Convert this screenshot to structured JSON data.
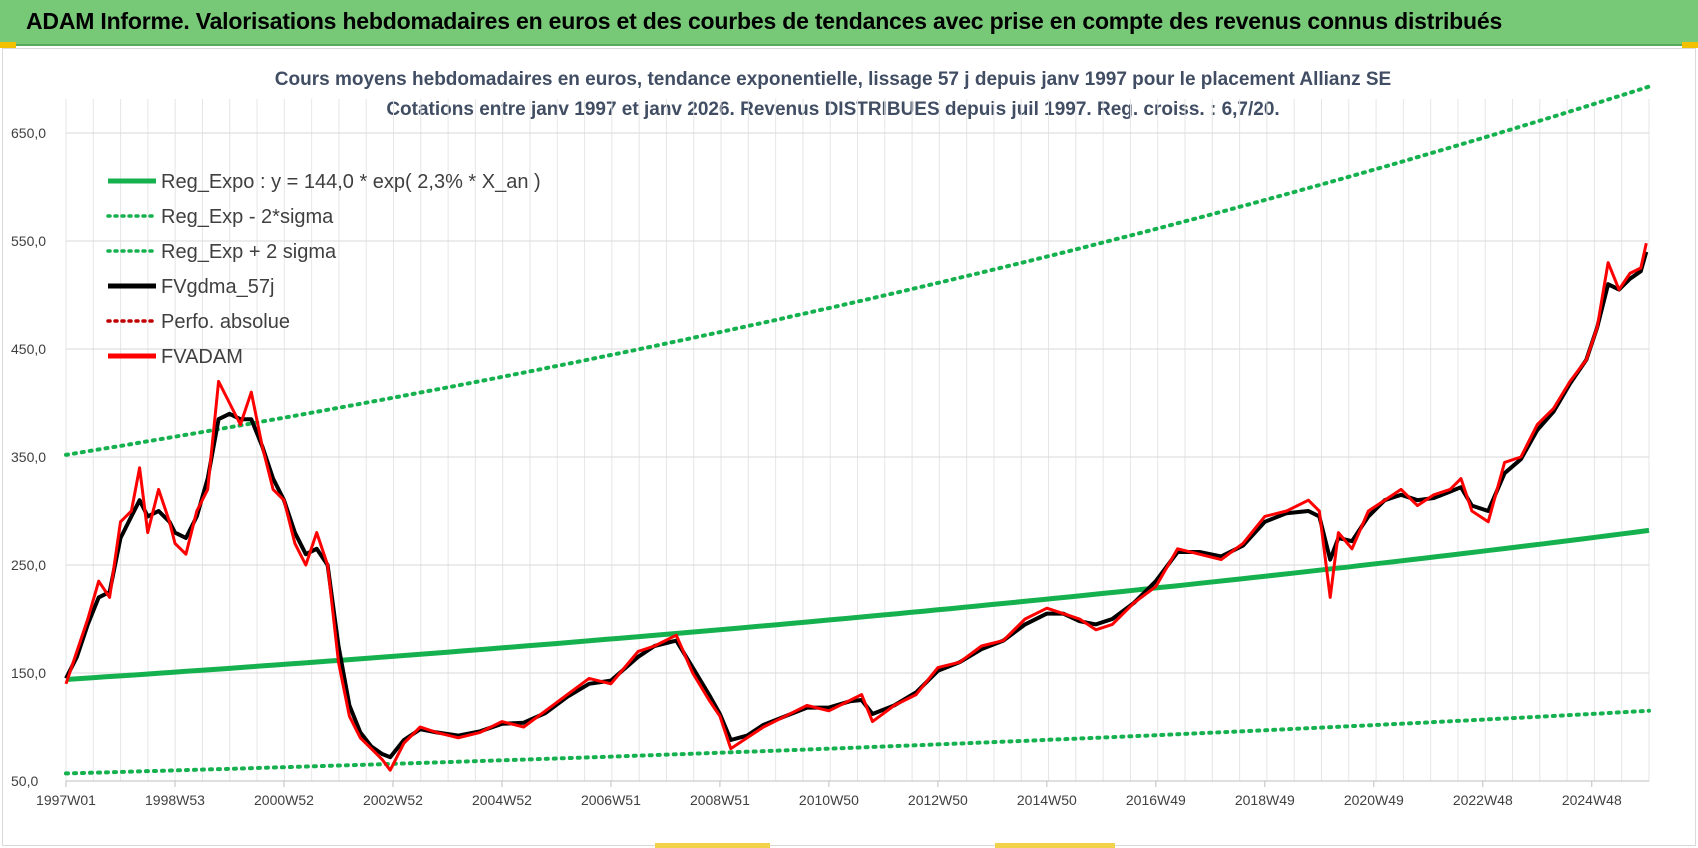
{
  "header": {
    "title": "ADAM Informe. Valorisations hebdomadaires en euros et des courbes de tendances avec prise en compte des revenus connus distribués"
  },
  "colors": {
    "banner": "#77c978",
    "trend": "#16b14f",
    "band": "#16b14f",
    "smooth": "#000000",
    "perfo": "#c00000",
    "fvadam": "#ff0000"
  },
  "chart_data": {
    "type": "line",
    "title": "Cours moyens hebdomadaires en euros, tendance exponentielle, lissage 57 j depuis janv 1997  pour le placement Allianz SE",
    "subtitle": "Cotations entre janv 1997 et janv 2026. Revenus DISTRIBUES depuis juil 1997. Reg. croiss. : 6,7/20.",
    "xlabel": "",
    "ylabel": "",
    "ylim": [
      50,
      700
    ],
    "xlim": [
      1997.0,
      2026.05
    ],
    "y_ticks": [
      "50,0",
      "150,0",
      "250,0",
      "350,0",
      "450,0",
      "550,0",
      "650,0"
    ],
    "x_ticks": [
      "1997W01",
      "1998W53",
      "2000W52",
      "2002W52",
      "2004W52",
      "2006W51",
      "2008W51",
      "2010W50",
      "2012W50",
      "2014W50",
      "2016W49",
      "2018W49",
      "2020W49",
      "2022W48",
      "2024W48"
    ],
    "grid": true,
    "legend_position": "top-left",
    "legend": [
      {
        "label": "Reg_Expo : y = 144,0 * exp( 2,3% *  X_an )",
        "style": "solid",
        "color": "#16b14f"
      },
      {
        "label": "Reg_Exp - 2*sigma",
        "style": "dotted",
        "color": "#16b14f"
      },
      {
        "label": "Reg_Exp + 2 sigma",
        "style": "dotted",
        "color": "#16b14f"
      },
      {
        "label": "FVgdma_57j",
        "style": "solid",
        "color": "#000000"
      },
      {
        "label": "Perfo. absolue",
        "style": "dotted",
        "color": "#c00000"
      },
      {
        "label": "FVADAM",
        "style": "solid",
        "color": "#ff0000"
      }
    ],
    "trend": {
      "start": 144.0,
      "end": 282.0
    },
    "lower_band": {
      "start": 57.0,
      "end": 115.0
    },
    "upper_band": {
      "start": 352.0,
      "end": 693.0
    },
    "series_fvadam": {
      "x": [
        1997.0,
        1997.2,
        1997.4,
        1997.6,
        1997.8,
        1998.0,
        1998.2,
        1998.35,
        1998.5,
        1998.7,
        1998.9,
        1999.0,
        1999.2,
        1999.4,
        1999.6,
        1999.8,
        2000.0,
        2000.2,
        2000.4,
        2000.6,
        2000.8,
        2001.0,
        2001.2,
        2001.4,
        2001.6,
        2001.8,
        2002.0,
        2002.2,
        2002.4,
        2002.6,
        2002.8,
        2002.95,
        2003.2,
        2003.5,
        2003.8,
        2004.2,
        2004.6,
        2005.0,
        2005.4,
        2005.8,
        2006.2,
        2006.6,
        2007.0,
        2007.5,
        2007.8,
        2008.2,
        2008.5,
        2008.8,
        2009.0,
        2009.2,
        2009.5,
        2009.8,
        2010.2,
        2010.6,
        2011.0,
        2011.4,
        2011.6,
        2011.8,
        2012.2,
        2012.6,
        2013.0,
        2013.4,
        2013.8,
        2014.2,
        2014.6,
        2015.0,
        2015.3,
        2015.6,
        2015.9,
        2016.2,
        2016.6,
        2017.0,
        2017.4,
        2017.8,
        2018.2,
        2018.6,
        2019.0,
        2019.4,
        2019.8,
        2020.0,
        2020.2,
        2020.35,
        2020.6,
        2020.9,
        2021.2,
        2021.5,
        2021.8,
        2022.1,
        2022.4,
        2022.6,
        2022.8,
        2023.1,
        2023.4,
        2023.7,
        2024.0,
        2024.3,
        2024.6,
        2024.9,
        2025.1,
        2025.3,
        2025.5,
        2025.7,
        2025.9,
        2026.0
      ],
      "y": [
        140,
        170,
        200,
        235,
        220,
        290,
        300,
        340,
        280,
        320,
        290,
        270,
        260,
        300,
        320,
        420,
        400,
        380,
        410,
        360,
        320,
        310,
        270,
        250,
        280,
        250,
        160,
        110,
        90,
        80,
        70,
        60,
        85,
        100,
        95,
        90,
        95,
        105,
        100,
        115,
        130,
        145,
        140,
        170,
        175,
        185,
        150,
        125,
        110,
        80,
        90,
        100,
        110,
        120,
        115,
        125,
        130,
        105,
        120,
        130,
        155,
        160,
        175,
        180,
        200,
        210,
        205,
        200,
        190,
        195,
        215,
        230,
        265,
        260,
        255,
        270,
        295,
        300,
        310,
        300,
        220,
        280,
        265,
        300,
        310,
        320,
        305,
        315,
        320,
        330,
        300,
        290,
        345,
        350,
        380,
        395,
        420,
        440,
        470,
        530,
        505,
        520,
        525,
        548
      ]
    },
    "series_fvgdma": {
      "x": [
        1997.0,
        1997.2,
        1997.4,
        1997.6,
        1997.8,
        1998.0,
        1998.2,
        1998.35,
        1998.5,
        1998.7,
        1998.9,
        1999.0,
        1999.2,
        1999.4,
        1999.6,
        1999.8,
        2000.0,
        2000.2,
        2000.4,
        2000.6,
        2000.8,
        2001.0,
        2001.2,
        2001.4,
        2001.6,
        2001.8,
        2002.0,
        2002.2,
        2002.4,
        2002.6,
        2002.8,
        2002.95,
        2003.2,
        2003.5,
        2003.8,
        2004.2,
        2004.6,
        2005.0,
        2005.4,
        2005.8,
        2006.2,
        2006.6,
        2007.0,
        2007.5,
        2007.8,
        2008.2,
        2008.5,
        2008.8,
        2009.0,
        2009.2,
        2009.5,
        2009.8,
        2010.2,
        2010.6,
        2011.0,
        2011.4,
        2011.6,
        2011.8,
        2012.2,
        2012.6,
        2013.0,
        2013.4,
        2013.8,
        2014.2,
        2014.6,
        2015.0,
        2015.3,
        2015.6,
        2015.9,
        2016.2,
        2016.6,
        2017.0,
        2017.4,
        2017.8,
        2018.2,
        2018.6,
        2019.0,
        2019.4,
        2019.8,
        2020.0,
        2020.2,
        2020.35,
        2020.6,
        2020.9,
        2021.2,
        2021.5,
        2021.8,
        2022.1,
        2022.4,
        2022.6,
        2022.8,
        2023.1,
        2023.4,
        2023.7,
        2024.0,
        2024.3,
        2024.6,
        2024.9,
        2025.1,
        2025.3,
        2025.5,
        2025.7,
        2025.9,
        2026.0
      ],
      "y": [
        145,
        165,
        195,
        220,
        225,
        275,
        295,
        310,
        295,
        300,
        290,
        280,
        275,
        295,
        330,
        385,
        390,
        385,
        385,
        360,
        330,
        310,
        280,
        260,
        265,
        250,
        175,
        120,
        95,
        82,
        75,
        72,
        88,
        98,
        95,
        92,
        96,
        103,
        104,
        113,
        128,
        140,
        143,
        165,
        175,
        180,
        155,
        130,
        112,
        88,
        92,
        102,
        110,
        118,
        118,
        124,
        125,
        112,
        120,
        132,
        152,
        160,
        172,
        180,
        195,
        205,
        205,
        198,
        195,
        200,
        215,
        235,
        262,
        262,
        258,
        268,
        290,
        298,
        300,
        295,
        255,
        275,
        272,
        295,
        310,
        315,
        310,
        312,
        318,
        322,
        305,
        300,
        335,
        348,
        375,
        392,
        418,
        440,
        470,
        510,
        505,
        515,
        522,
        540
      ]
    }
  }
}
